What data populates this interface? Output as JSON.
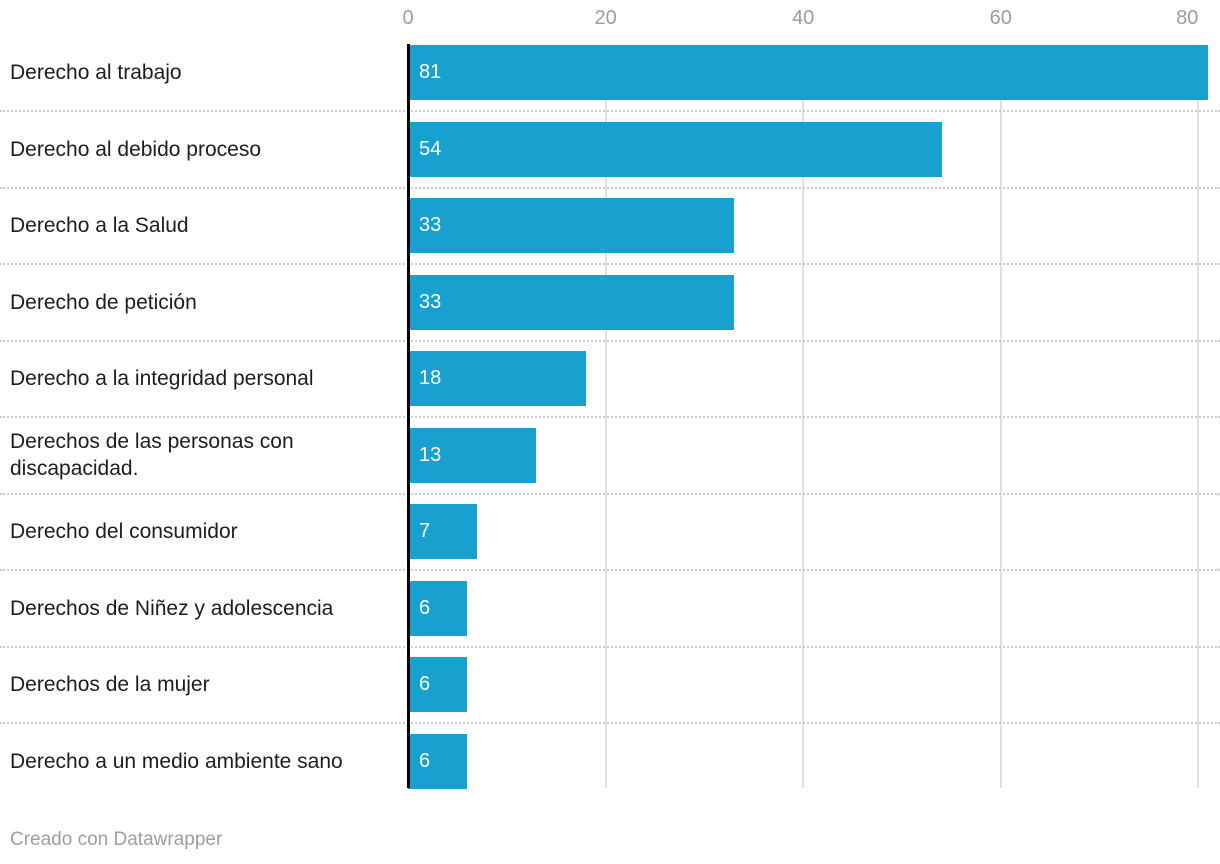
{
  "chart_data": {
    "type": "bar",
    "orientation": "horizontal",
    "categories": [
      "Derecho al trabajo",
      "Derecho al debido proceso",
      "Derecho a la Salud",
      "Derecho de petición",
      "Derecho a la integridad personal",
      "Derechos de las personas con discapacidad.",
      "Derecho del consumidor",
      "Derechos de Niñez y adolescencia",
      "Derechos de la mujer",
      "Derecho a un medio ambiente sano"
    ],
    "values": [
      81,
      54,
      33,
      33,
      18,
      13,
      7,
      6,
      6,
      6
    ],
    "x_ticks": [
      0,
      20,
      40,
      60,
      80
    ],
    "xlim": [
      0,
      82
    ],
    "grid": true,
    "legend": "none",
    "axis_position": "top",
    "value_labels": "inside-start",
    "colors": {
      "bar": "#18a0ce",
      "value_label": "#ffffff",
      "category_label": "#1d1d1d",
      "axis_tick": "#9d9d9d",
      "gridline": "#e0e0e0",
      "row_separator": "#cccccc",
      "zero_baseline": "#000000",
      "credit": "#9e9e9e",
      "background": "#ffffff"
    }
  },
  "footer": {
    "credit": "Creado con Datawrapper"
  }
}
